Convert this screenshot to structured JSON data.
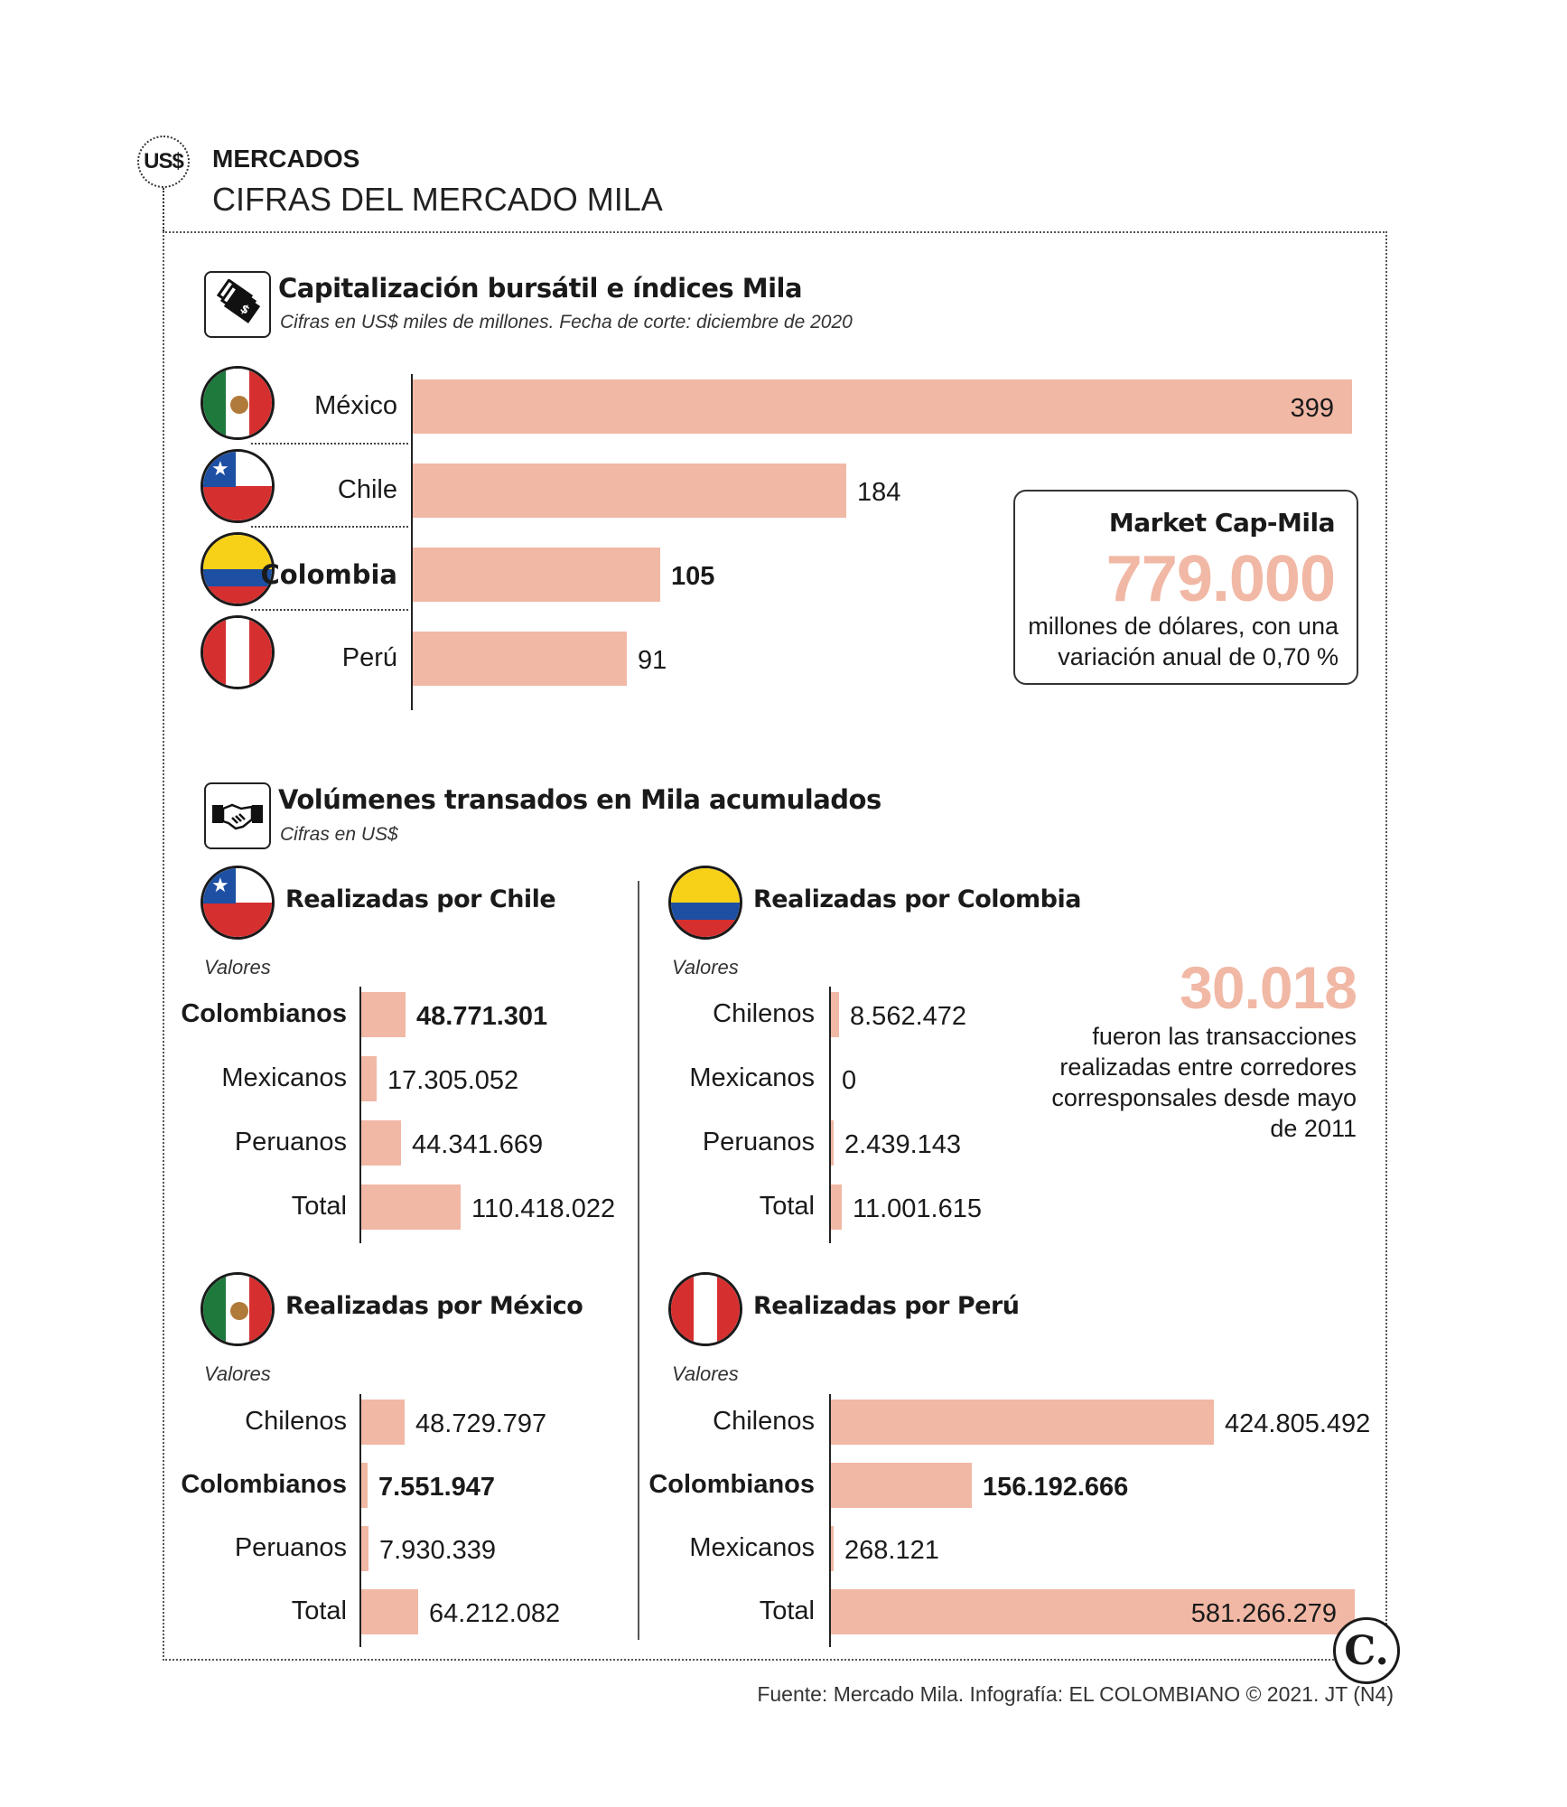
{
  "header": {
    "badge": "US$",
    "section": "MERCADOS",
    "title": "CIFRAS DEL MERCADO MILA"
  },
  "capitalizacion": {
    "title": "Capitalización bursátil e índices Mila",
    "subtitle": "Cifras en US$ miles de millones. Fecha de corte: diciembre de 2020"
  },
  "market_cap": {
    "title": "Market Cap-Mila",
    "value": "779.000",
    "text": "millones de dólares, con una variación anual de 0,70 %"
  },
  "volumenes": {
    "title": "Volúmenes transados en Mila acumulados",
    "subtitle": "Cifras en US$",
    "valores_label": "Valores"
  },
  "transacciones": {
    "value": "30.018",
    "text": "fueron las transacciones realizadas entre corredores corresponsales desde mayo de 2011"
  },
  "footer": {
    "source": "Fuente: Mercado Mila. Infografía: EL COLOMBIANO © 2021. JT (N4)",
    "logo": "C."
  },
  "colors": {
    "bar": "#f1b8a5",
    "highlight_number": "#f1b8a5",
    "text": "#1a1a1a"
  },
  "chart_data": [
    {
      "type": "bar",
      "orientation": "horizontal",
      "title": "Capitalización bursátil e índices Mila",
      "categories": [
        "México",
        "Chile",
        "Colombia",
        "Perú"
      ],
      "values": [
        399,
        184,
        105,
        91
      ],
      "value_labels": [
        "399",
        "184",
        "105",
        "91"
      ],
      "highlight": "Colombia",
      "grid": false
    },
    {
      "type": "bar",
      "orientation": "horizontal",
      "title": "Realizadas por Chile",
      "categories": [
        "Colombianos",
        "Mexicanos",
        "Peruanos",
        "Total"
      ],
      "values": [
        48771301,
        17305052,
        44341669,
        110418022
      ],
      "value_labels": [
        "48.771.301",
        "17.305.052",
        "44.341.669",
        "110.418.022"
      ],
      "highlight": "Colombianos"
    },
    {
      "type": "bar",
      "orientation": "horizontal",
      "title": "Realizadas por Colombia",
      "categories": [
        "Chilenos",
        "Mexicanos",
        "Peruanos",
        "Total"
      ],
      "values": [
        8562472,
        0,
        2439143,
        11001615
      ],
      "value_labels": [
        "8.562.472",
        "0",
        "2.439.143",
        "11.001.615"
      ],
      "highlight": ""
    },
    {
      "type": "bar",
      "orientation": "horizontal",
      "title": "Realizadas por México",
      "categories": [
        "Chilenos",
        "Colombianos",
        "Peruanos",
        "Total"
      ],
      "values": [
        48729797,
        7551947,
        7930339,
        64212082
      ],
      "value_labels": [
        "48.729.797",
        "7.551.947",
        "7.930.339",
        "64.212.082"
      ],
      "highlight": "Colombianos"
    },
    {
      "type": "bar",
      "orientation": "horizontal",
      "title": "Realizadas por Perú",
      "categories": [
        "Chilenos",
        "Colombianos",
        "Mexicanos",
        "Total"
      ],
      "values": [
        424805492,
        156192666,
        268121,
        581266279
      ],
      "value_labels": [
        "424.805.492",
        "156.192.666",
        "268.121",
        "581.266.279"
      ],
      "highlight": "Colombianos"
    }
  ]
}
